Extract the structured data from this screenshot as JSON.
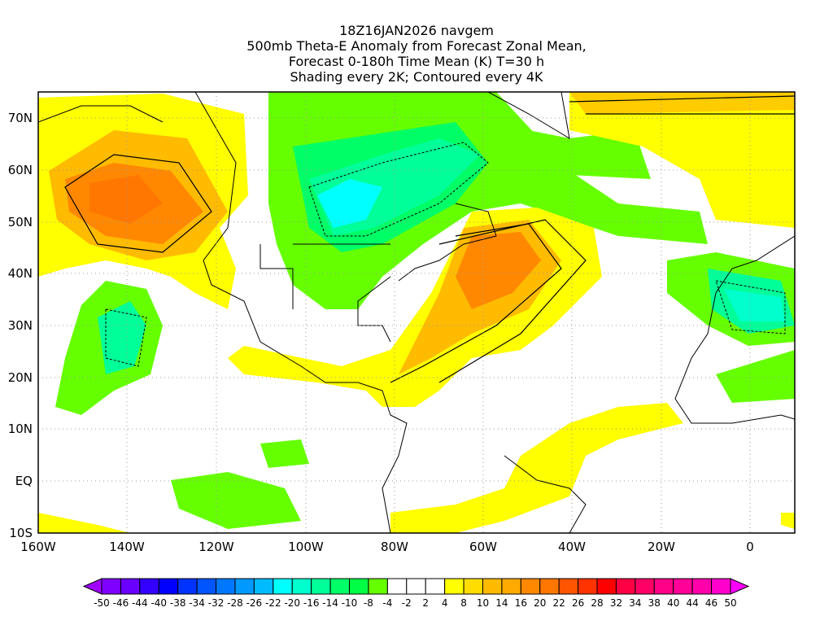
{
  "title": {
    "line1": "18Z16JAN2026 navgem",
    "line2": "500mb Theta-E Anomaly from Forecast Zonal Mean,",
    "line3": "Forecast 0-180h Time Mean (K) T=30 h",
    "line4": "Shading every 2K; Contoured every 4K"
  },
  "axes": {
    "lat_labels": [
      "70N",
      "60N",
      "50N",
      "40N",
      "30N",
      "20N",
      "10N",
      "EQ",
      "10S"
    ],
    "lon_labels": [
      "160W",
      "140W",
      "120W",
      "100W",
      "80W",
      "60W",
      "40W",
      "20W",
      "0"
    ]
  },
  "colorbar": {
    "labels": [
      "-50",
      "-46",
      "-44",
      "-40",
      "-38",
      "-34",
      "-32",
      "-28",
      "-26",
      "-22",
      "-20",
      "-16",
      "-14",
      "-10",
      "-8",
      "-4",
      "-2",
      "2",
      "4",
      "8",
      "10",
      "14",
      "16",
      "20",
      "22",
      "26",
      "28",
      "32",
      "34",
      "38",
      "40",
      "44",
      "46",
      "50"
    ],
    "colors": [
      "#a000ff",
      "#7f00ff",
      "#6a00ff",
      "#3300ff",
      "#0000ff",
      "#0033ff",
      "#0055ff",
      "#0077ff",
      "#0099ff",
      "#00bbff",
      "#00ffff",
      "#00ffcc",
      "#00ff99",
      "#00ff66",
      "#00ff44",
      "#66ff00",
      "#ffffff",
      "#ffffff",
      "#ffffff",
      "#ffff00",
      "#ffdd00",
      "#ffbb00",
      "#ffaa00",
      "#ff8800",
      "#ff7700",
      "#ff5500",
      "#ff3300",
      "#ff0000",
      "#ff0044",
      "#ff0066",
      "#ff0088",
      "#ff0099",
      "#ff00aa",
      "#ff00cc",
      "#ff00ff"
    ]
  }
}
